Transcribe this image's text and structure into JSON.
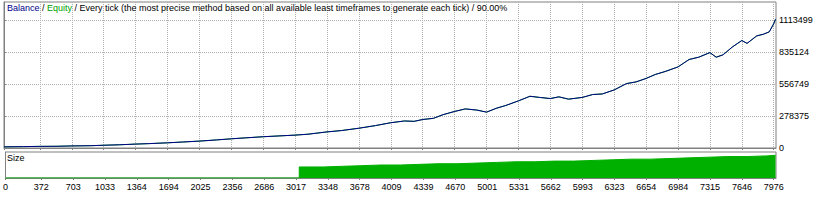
{
  "chart_data": [
    {
      "type": "line",
      "title": "Balance / Equity / Every tick (the most precise method based on all available least timeframes to generate each tick) / 90.00%",
      "x": [
        0,
        200,
        372,
        550,
        703,
        900,
        1033,
        1200,
        1364,
        1500,
        1694,
        1850,
        2025,
        2200,
        2356,
        2500,
        2686,
        2850,
        3017,
        3150,
        3348,
        3500,
        3678,
        3850,
        4009,
        4150,
        4250,
        4339,
        4450,
        4550,
        4670,
        4780,
        4900,
        5001,
        5100,
        5200,
        5331,
        5450,
        5550,
        5662,
        5750,
        5850,
        5993,
        6100,
        6200,
        6323,
        6450,
        6550,
        6654,
        6750,
        6850,
        6984,
        7100,
        7200,
        7315,
        7380,
        7450,
        7550,
        7646,
        7700,
        7800,
        7870,
        7930,
        7976,
        7995
      ],
      "series": [
        {
          "name": "Balance",
          "color": "#00008b",
          "values": [
            10000,
            12000,
            14000,
            15000,
            18000,
            20000,
            24000,
            28000,
            34000,
            38000,
            45000,
            52000,
            60000,
            70000,
            80000,
            88000,
            98000,
            105000,
            112000,
            120000,
            140000,
            152000,
            172000,
            195000,
            220000,
            235000,
            232000,
            248000,
            258000,
            290000,
            318000,
            340000,
            330000,
            312000,
            345000,
            370000,
            410000,
            450000,
            440000,
            430000,
            445000,
            425000,
            440000,
            465000,
            470000,
            505000,
            560000,
            575000,
            605000,
            640000,
            665000,
            705000,
            770000,
            790000,
            830000,
            790000,
            810000,
            880000,
            935000,
            910000,
            975000,
            990000,
            1010000,
            1080000,
            1120000
          ]
        },
        {
          "name": "Equity",
          "color": "#00a000",
          "values": [
            10000,
            12000,
            14000,
            15000,
            18000,
            20000,
            24000,
            28000,
            34000,
            38000,
            45000,
            52000,
            60000,
            70000,
            80000,
            88000,
            98000,
            105000,
            112000,
            120000,
            140000,
            152000,
            172000,
            195000,
            220000,
            235000,
            232000,
            248000,
            258000,
            290000,
            318000,
            340000,
            330000,
            312000,
            345000,
            370000,
            410000,
            450000,
            440000,
            430000,
            445000,
            425000,
            440000,
            465000,
            470000,
            505000,
            560000,
            575000,
            605000,
            640000,
            665000,
            705000,
            770000,
            790000,
            830000,
            790000,
            810000,
            880000,
            935000,
            910000,
            975000,
            990000,
            1010000,
            1080000,
            1120000
          ]
        }
      ],
      "xlim": [
        0,
        8000
      ],
      "xticks": [
        0,
        372,
        703,
        1033,
        1364,
        1694,
        2025,
        2356,
        2686,
        3017,
        3348,
        3678,
        4009,
        4339,
        4670,
        5001,
        5331,
        5662,
        5993,
        6323,
        6654,
        6984,
        7315,
        7646,
        7976
      ],
      "ylim": [
        0,
        1270000
      ],
      "yticks": [
        0,
        278375,
        556749,
        835124,
        1113499
      ],
      "grid": true,
      "tick_labels": "y"
    },
    {
      "type": "area",
      "title": "Size",
      "x": [
        0,
        3050,
        3300,
        3500,
        3700,
        3900,
        4100,
        4300,
        4500,
        4700,
        4900,
        5100,
        5300,
        5500,
        5700,
        5900,
        6100,
        6300,
        6500,
        6700,
        6900,
        7100,
        7300,
        7500,
        7700,
        7900,
        7995
      ],
      "values": [
        0,
        1.7,
        1.8,
        1.9,
        2.0,
        2.0,
        2.1,
        2.2,
        2.2,
        2.3,
        2.4,
        2.5,
        2.5,
        2.6,
        2.6,
        2.7,
        2.8,
        2.9,
        2.9,
        3.0,
        3.1,
        3.2,
        3.3,
        3.3,
        3.4,
        3.5,
        3.6
      ],
      "color": "#00b000",
      "xlim": [
        0,
        8000
      ],
      "xticks": [
        0,
        372,
        703,
        1033,
        1364,
        1694,
        2025,
        2356,
        2686,
        3017,
        3348,
        3678,
        4009,
        4339,
        4670,
        5001,
        5331,
        5662,
        5993,
        6323,
        6654,
        6984,
        7315,
        7646,
        7976
      ],
      "ylim": [
        0,
        4
      ],
      "grid": false,
      "tick_labels": "x"
    }
  ]
}
